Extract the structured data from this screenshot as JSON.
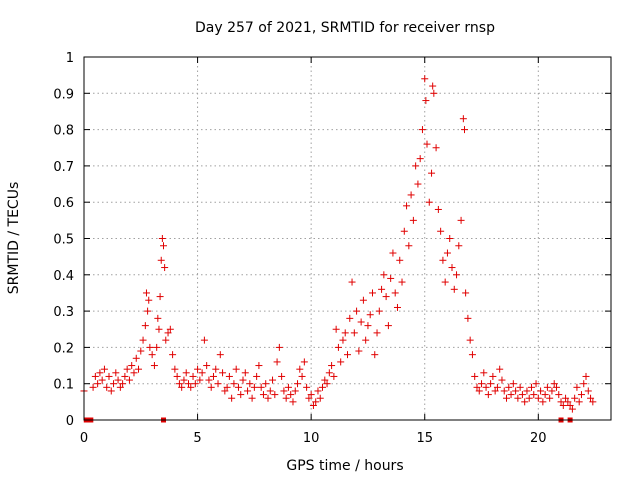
{
  "chart_data": {
    "type": "scatter",
    "title": "Day 257 of 2021, SRMTID for receiver rnsp",
    "xlabel": "GPS time / hours",
    "ylabel": "SRMTID / TECUs",
    "xlim": [
      0,
      23.2
    ],
    "ylim": [
      0,
      1
    ],
    "xticks": [
      0,
      5,
      10,
      15,
      20
    ],
    "xtick_labels": [
      "0",
      "5",
      "10",
      "15",
      "20"
    ],
    "yticks": [
      0,
      0.1,
      0.2,
      0.3,
      0.4,
      0.5,
      0.6,
      0.7,
      0.8,
      0.9,
      1
    ],
    "ytick_labels": [
      "0",
      "0.1",
      "0.2",
      "0.3",
      "0.4",
      "0.5",
      "0.6",
      "0.7",
      "0.8",
      "0.9",
      "1"
    ],
    "grid": true,
    "marker": "+",
    "color": "#e00000",
    "series": [
      {
        "name": "SRMTID",
        "points": [
          [
            0.0,
            0.08
          ],
          [
            0.4,
            0.09
          ],
          [
            0.5,
            0.12
          ],
          [
            0.6,
            0.1
          ],
          [
            0.7,
            0.13
          ],
          [
            0.8,
            0.11
          ],
          [
            0.9,
            0.14
          ],
          [
            1.0,
            0.09
          ],
          [
            1.1,
            0.12
          ],
          [
            1.2,
            0.08
          ],
          [
            1.3,
            0.1
          ],
          [
            1.4,
            0.13
          ],
          [
            1.5,
            0.11
          ],
          [
            1.6,
            0.09
          ],
          [
            1.7,
            0.1
          ],
          [
            1.8,
            0.12
          ],
          [
            1.9,
            0.14
          ],
          [
            2.0,
            0.11
          ],
          [
            2.1,
            0.15
          ],
          [
            2.2,
            0.13
          ],
          [
            2.3,
            0.17
          ],
          [
            2.4,
            0.14
          ],
          [
            2.5,
            0.19
          ],
          [
            2.6,
            0.22
          ],
          [
            2.7,
            0.26
          ],
          [
            2.75,
            0.35
          ],
          [
            2.8,
            0.3
          ],
          [
            2.85,
            0.33
          ],
          [
            2.9,
            0.2
          ],
          [
            3.0,
            0.18
          ],
          [
            3.1,
            0.15
          ],
          [
            3.2,
            0.2
          ],
          [
            3.25,
            0.28
          ],
          [
            3.3,
            0.25
          ],
          [
            3.35,
            0.34
          ],
          [
            3.4,
            0.44
          ],
          [
            3.45,
            0.5
          ],
          [
            3.5,
            0.48
          ],
          [
            3.55,
            0.42
          ],
          [
            3.6,
            0.22
          ],
          [
            3.7,
            0.24
          ],
          [
            3.8,
            0.25
          ],
          [
            3.9,
            0.18
          ],
          [
            4.0,
            0.14
          ],
          [
            4.1,
            0.12
          ],
          [
            4.2,
            0.1
          ],
          [
            4.3,
            0.09
          ],
          [
            4.4,
            0.11
          ],
          [
            4.5,
            0.13
          ],
          [
            4.6,
            0.1
          ],
          [
            4.7,
            0.09
          ],
          [
            4.8,
            0.12
          ],
          [
            4.9,
            0.1
          ],
          [
            5.0,
            0.14
          ],
          [
            5.1,
            0.11
          ],
          [
            5.2,
            0.13
          ],
          [
            5.3,
            0.22
          ],
          [
            5.4,
            0.15
          ],
          [
            5.5,
            0.11
          ],
          [
            5.6,
            0.09
          ],
          [
            5.7,
            0.12
          ],
          [
            5.8,
            0.14
          ],
          [
            5.9,
            0.1
          ],
          [
            6.0,
            0.18
          ],
          [
            6.1,
            0.13
          ],
          [
            6.2,
            0.08
          ],
          [
            6.3,
            0.09
          ],
          [
            6.4,
            0.12
          ],
          [
            6.5,
            0.06
          ],
          [
            6.6,
            0.1
          ],
          [
            6.7,
            0.14
          ],
          [
            6.8,
            0.09
          ],
          [
            6.9,
            0.07
          ],
          [
            7.0,
            0.11
          ],
          [
            7.1,
            0.13
          ],
          [
            7.2,
            0.08
          ],
          [
            7.3,
            0.1
          ],
          [
            7.4,
            0.06
          ],
          [
            7.5,
            0.09
          ],
          [
            7.6,
            0.12
          ],
          [
            7.7,
            0.15
          ],
          [
            7.8,
            0.09
          ],
          [
            7.9,
            0.07
          ],
          [
            8.0,
            0.1
          ],
          [
            8.1,
            0.06
          ],
          [
            8.2,
            0.08
          ],
          [
            8.3,
            0.11
          ],
          [
            8.4,
            0.07
          ],
          [
            8.5,
            0.16
          ],
          [
            8.6,
            0.2
          ],
          [
            8.7,
            0.12
          ],
          [
            8.8,
            0.08
          ],
          [
            8.9,
            0.06
          ],
          [
            9.0,
            0.09
          ],
          [
            9.1,
            0.07
          ],
          [
            9.2,
            0.05
          ],
          [
            9.3,
            0.08
          ],
          [
            9.4,
            0.1
          ],
          [
            9.5,
            0.14
          ],
          [
            9.6,
            0.12
          ],
          [
            9.7,
            0.16
          ],
          [
            9.8,
            0.09
          ],
          [
            9.9,
            0.06
          ],
          [
            10.0,
            0.07
          ],
          [
            10.1,
            0.04
          ],
          [
            10.2,
            0.05
          ],
          [
            10.3,
            0.08
          ],
          [
            10.4,
            0.06
          ],
          [
            10.5,
            0.09
          ],
          [
            10.6,
            0.11
          ],
          [
            10.7,
            0.1
          ],
          [
            10.8,
            0.13
          ],
          [
            10.9,
            0.15
          ],
          [
            11.0,
            0.12
          ],
          [
            11.1,
            0.25
          ],
          [
            11.2,
            0.2
          ],
          [
            11.3,
            0.16
          ],
          [
            11.4,
            0.22
          ],
          [
            11.5,
            0.24
          ],
          [
            11.6,
            0.18
          ],
          [
            11.7,
            0.28
          ],
          [
            11.8,
            0.38
          ],
          [
            11.9,
            0.24
          ],
          [
            12.0,
            0.3
          ],
          [
            12.1,
            0.19
          ],
          [
            12.2,
            0.27
          ],
          [
            12.3,
            0.33
          ],
          [
            12.4,
            0.22
          ],
          [
            12.5,
            0.26
          ],
          [
            12.6,
            0.29
          ],
          [
            12.7,
            0.35
          ],
          [
            12.8,
            0.18
          ],
          [
            12.9,
            0.24
          ],
          [
            13.0,
            0.3
          ],
          [
            13.1,
            0.36
          ],
          [
            13.2,
            0.4
          ],
          [
            13.3,
            0.34
          ],
          [
            13.4,
            0.26
          ],
          [
            13.5,
            0.39
          ],
          [
            13.6,
            0.46
          ],
          [
            13.7,
            0.35
          ],
          [
            13.8,
            0.31
          ],
          [
            13.9,
            0.44
          ],
          [
            14.0,
            0.38
          ],
          [
            14.1,
            0.52
          ],
          [
            14.2,
            0.59
          ],
          [
            14.3,
            0.48
          ],
          [
            14.4,
            0.62
          ],
          [
            14.5,
            0.55
          ],
          [
            14.6,
            0.7
          ],
          [
            14.7,
            0.65
          ],
          [
            14.8,
            0.72
          ],
          [
            14.9,
            0.8
          ],
          [
            15.0,
            0.94
          ],
          [
            15.05,
            0.88
          ],
          [
            15.1,
            0.76
          ],
          [
            15.2,
            0.6
          ],
          [
            15.3,
            0.68
          ],
          [
            15.35,
            0.92
          ],
          [
            15.4,
            0.9
          ],
          [
            15.5,
            0.75
          ],
          [
            15.6,
            0.58
          ],
          [
            15.7,
            0.52
          ],
          [
            15.8,
            0.44
          ],
          [
            15.9,
            0.38
          ],
          [
            16.0,
            0.46
          ],
          [
            16.1,
            0.5
          ],
          [
            16.2,
            0.42
          ],
          [
            16.3,
            0.36
          ],
          [
            16.4,
            0.4
          ],
          [
            16.5,
            0.48
          ],
          [
            16.6,
            0.55
          ],
          [
            16.7,
            0.83
          ],
          [
            16.75,
            0.8
          ],
          [
            16.8,
            0.35
          ],
          [
            16.9,
            0.28
          ],
          [
            17.0,
            0.22
          ],
          [
            17.1,
            0.18
          ],
          [
            17.2,
            0.12
          ],
          [
            17.3,
            0.09
          ],
          [
            17.4,
            0.08
          ],
          [
            17.5,
            0.1
          ],
          [
            17.6,
            0.13
          ],
          [
            17.7,
            0.09
          ],
          [
            17.8,
            0.07
          ],
          [
            17.9,
            0.1
          ],
          [
            18.0,
            0.12
          ],
          [
            18.1,
            0.08
          ],
          [
            18.2,
            0.09
          ],
          [
            18.3,
            0.14
          ],
          [
            18.4,
            0.11
          ],
          [
            18.5,
            0.08
          ],
          [
            18.6,
            0.06
          ],
          [
            18.7,
            0.09
          ],
          [
            18.8,
            0.07
          ],
          [
            18.9,
            0.1
          ],
          [
            19.0,
            0.08
          ],
          [
            19.1,
            0.06
          ],
          [
            19.2,
            0.09
          ],
          [
            19.3,
            0.07
          ],
          [
            19.4,
            0.05
          ],
          [
            19.5,
            0.08
          ],
          [
            19.6,
            0.06
          ],
          [
            19.7,
            0.09
          ],
          [
            19.8,
            0.07
          ],
          [
            19.9,
            0.1
          ],
          [
            20.0,
            0.06
          ],
          [
            20.1,
            0.08
          ],
          [
            20.2,
            0.05
          ],
          [
            20.3,
            0.07
          ],
          [
            20.4,
            0.09
          ],
          [
            20.5,
            0.06
          ],
          [
            20.6,
            0.08
          ],
          [
            20.7,
            0.1
          ],
          [
            20.8,
            0.09
          ],
          [
            20.9,
            0.07
          ],
          [
            21.0,
            0.05
          ],
          [
            21.1,
            0.04
          ],
          [
            21.2,
            0.06
          ],
          [
            21.3,
            0.05
          ],
          [
            21.4,
            0.04
          ],
          [
            21.5,
            0.03
          ],
          [
            21.6,
            0.06
          ],
          [
            21.7,
            0.09
          ],
          [
            21.8,
            0.05
          ],
          [
            21.9,
            0.07
          ],
          [
            22.0,
            0.1
          ],
          [
            22.1,
            0.12
          ],
          [
            22.2,
            0.08
          ],
          [
            22.3,
            0.06
          ],
          [
            22.4,
            0.05
          ]
        ]
      },
      {
        "name": "zero-level markers",
        "marker": "square",
        "points": [
          [
            0.1,
            0
          ],
          [
            0.3,
            0
          ],
          [
            3.5,
            0
          ],
          [
            21.0,
            0
          ],
          [
            21.4,
            0
          ]
        ]
      }
    ]
  }
}
